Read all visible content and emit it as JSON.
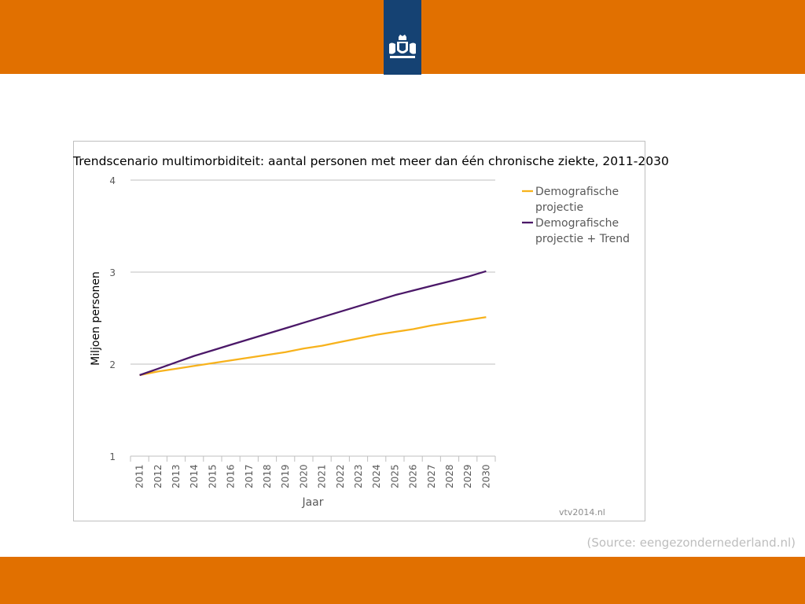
{
  "slide": {
    "source_note": "(Source: eengezondernederland.nl)",
    "colors": {
      "bar": "#e17000",
      "logo_bg": "#154273"
    },
    "logo_icon": "dutch-coat-of-arms-icon"
  },
  "chart_data": {
    "type": "line",
    "title": "Trendscenario multimorbiditeit: aantal personen met meer dan één chronische ziekte, 2011-2030",
    "xlabel": "Jaar",
    "ylabel": "Miljoen personen",
    "ylim": [
      1,
      4
    ],
    "yticks": [
      "1",
      "2",
      "3",
      "4"
    ],
    "grid": true,
    "legend_position": "right",
    "credit": "vtv2014.nl",
    "x": [
      "2011",
      "2012",
      "2013",
      "2014",
      "2015",
      "2016",
      "2017",
      "2018",
      "2019",
      "2020",
      "2021",
      "2022",
      "2023",
      "2024",
      "2025",
      "2026",
      "2027",
      "2028",
      "2029",
      "2030"
    ],
    "series": [
      {
        "name": "Demografische projectie",
        "legend_lines": [
          "Demografische",
          "projectie"
        ],
        "color": "#f7b21c",
        "values": [
          1.88,
          1.92,
          1.95,
          1.98,
          2.01,
          2.04,
          2.07,
          2.1,
          2.13,
          2.17,
          2.2,
          2.24,
          2.28,
          2.32,
          2.35,
          2.38,
          2.42,
          2.45,
          2.48,
          2.51
        ]
      },
      {
        "name": "Demografische projectie + Trend",
        "legend_lines": [
          "Demografische",
          "projectie + Trend"
        ],
        "color": "#4b1868",
        "values": [
          1.88,
          1.95,
          2.02,
          2.09,
          2.15,
          2.21,
          2.27,
          2.33,
          2.39,
          2.45,
          2.51,
          2.57,
          2.63,
          2.69,
          2.75,
          2.8,
          2.85,
          2.9,
          2.95,
          3.01
        ]
      }
    ]
  }
}
